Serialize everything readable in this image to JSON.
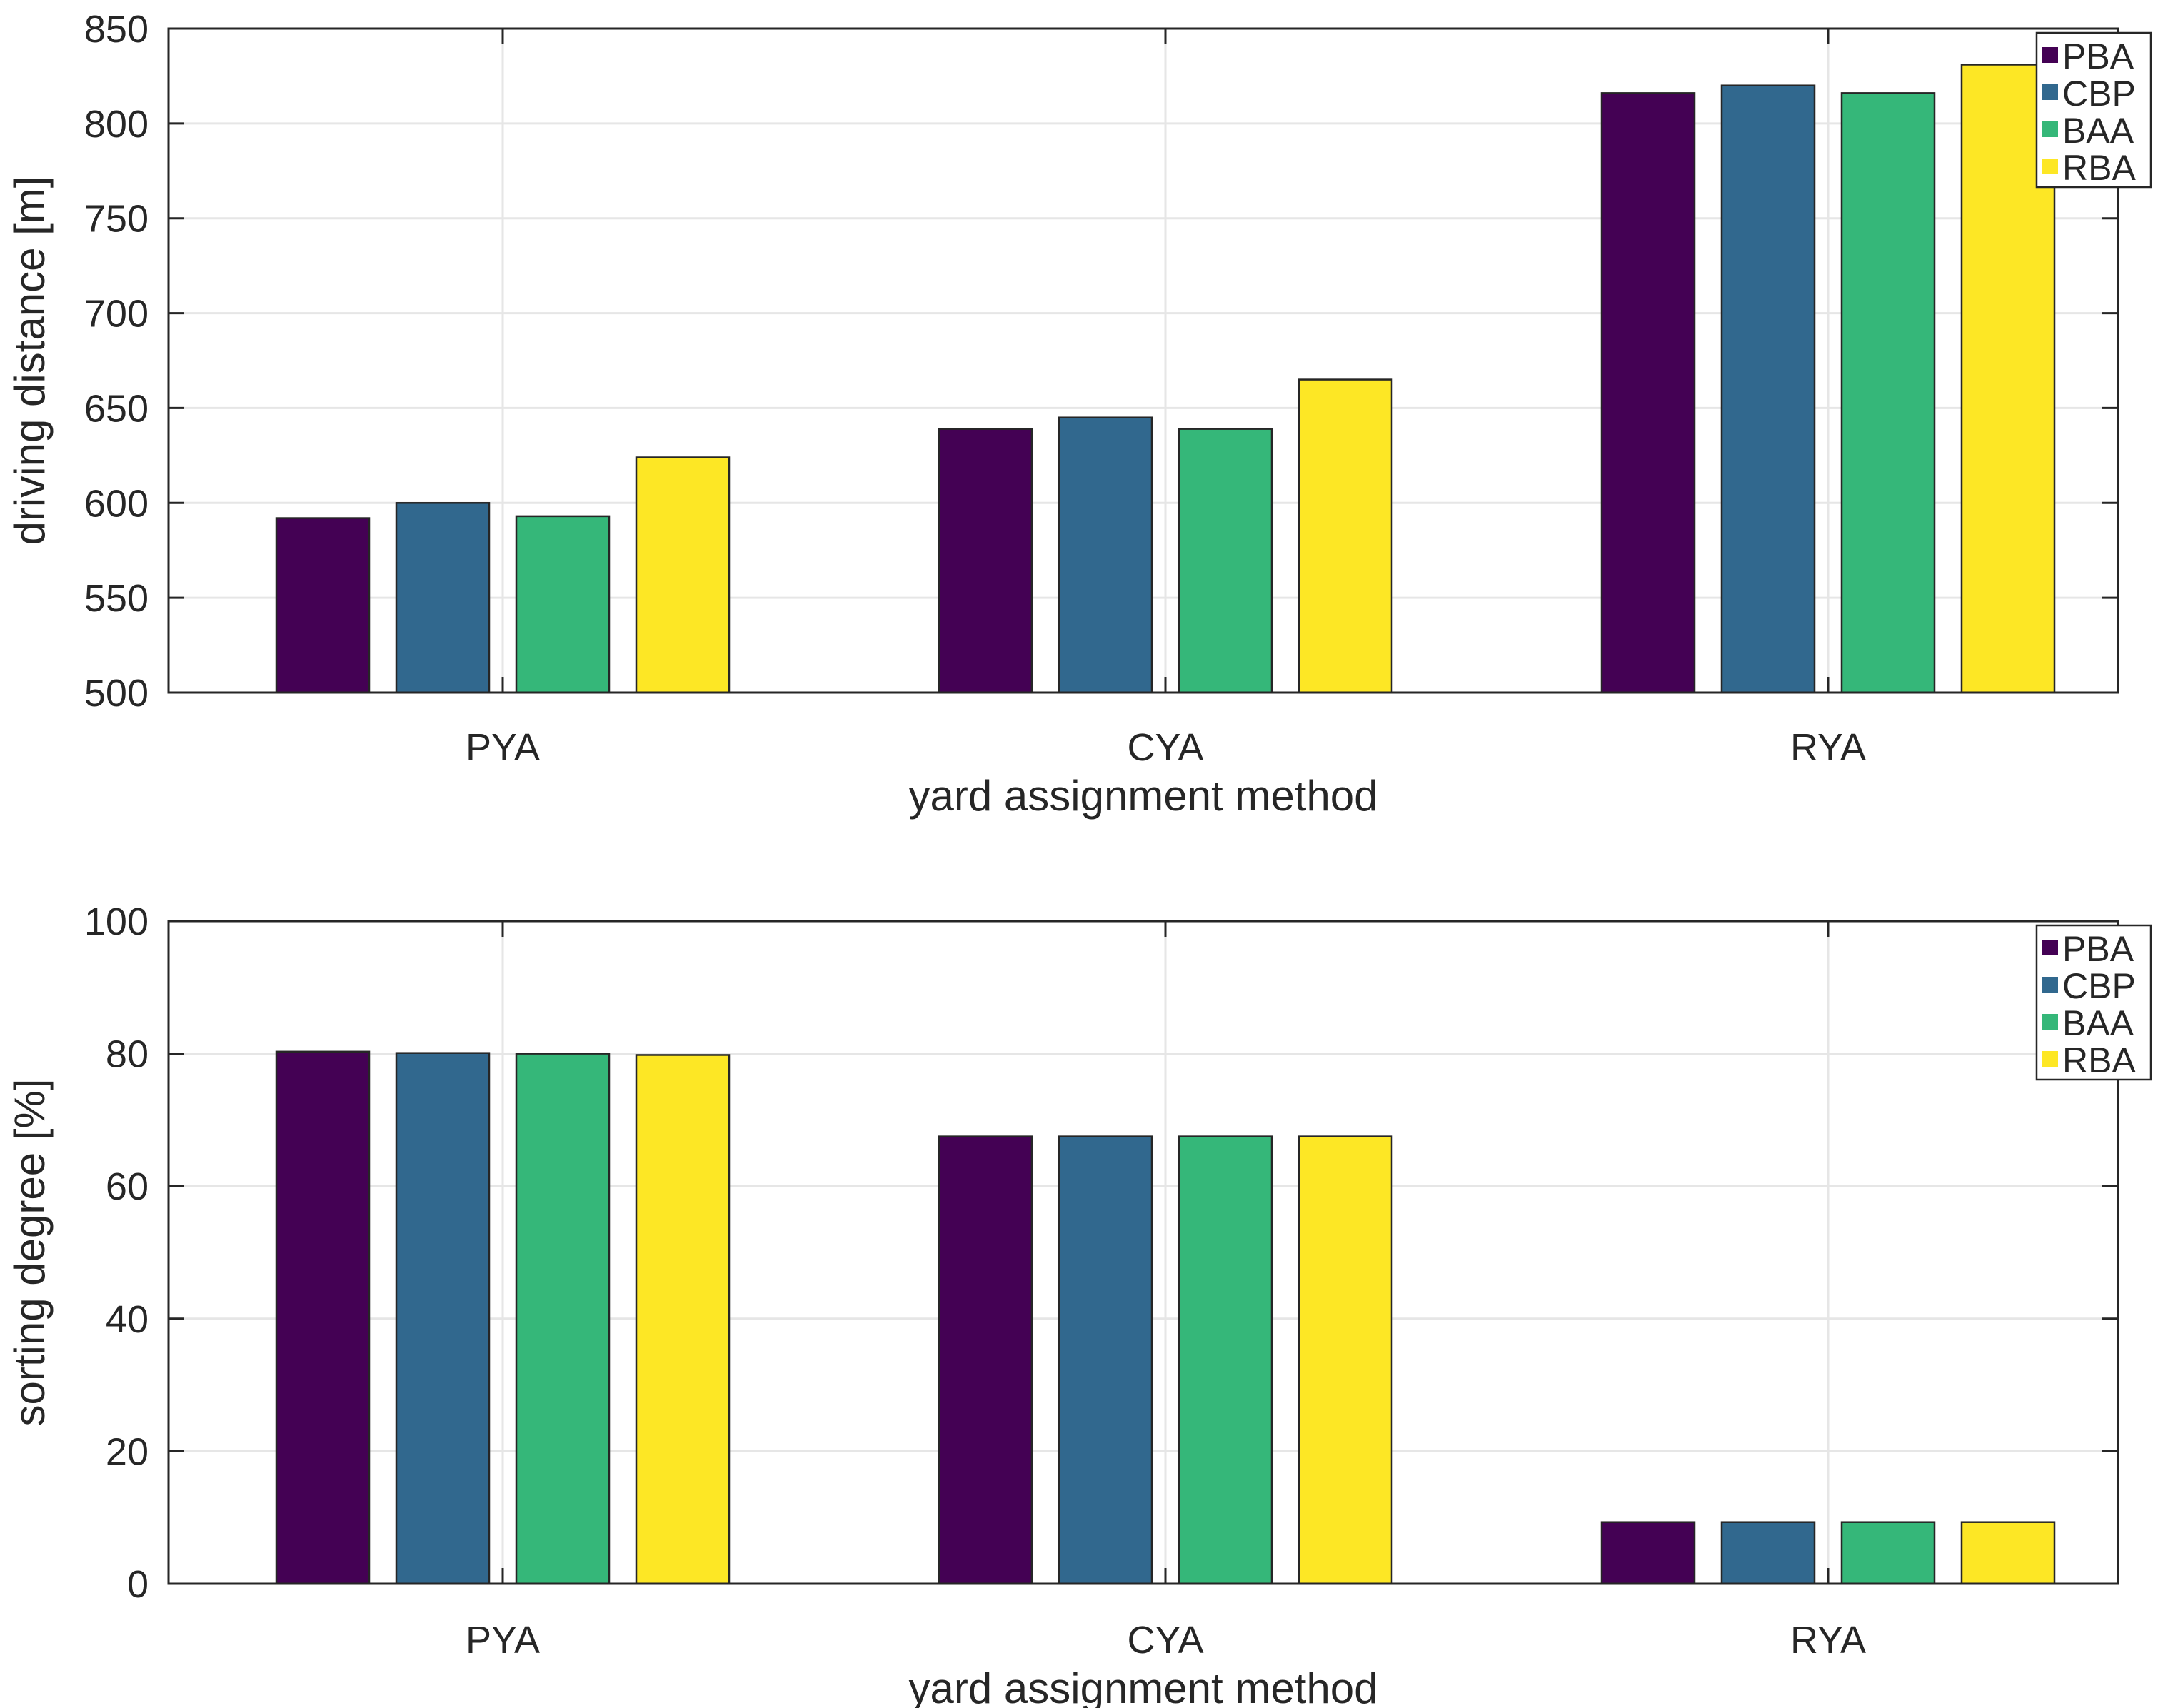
{
  "chart_data": [
    {
      "type": "bar",
      "categories": [
        "PYA",
        "CYA",
        "RYA"
      ],
      "series": [
        {
          "name": "PBA",
          "values": [
            592,
            639,
            816
          ]
        },
        {
          "name": "CBP",
          "values": [
            600,
            645,
            820
          ]
        },
        {
          "name": "BAA",
          "values": [
            593,
            639,
            816
          ]
        },
        {
          "name": "RBA",
          "values": [
            624,
            665,
            831
          ]
        }
      ],
      "xlabel": "yard assignment method",
      "ylabel": "driving distance [m]",
      "ylim": [
        500,
        850
      ],
      "yticks": [
        "500",
        "550",
        "600",
        "650",
        "700",
        "750",
        "800",
        "850"
      ],
      "grid": true,
      "legend": "top-right"
    },
    {
      "type": "bar",
      "categories": [
        "PYA",
        "CYA",
        "RYA"
      ],
      "series": [
        {
          "name": "PBA",
          "values": [
            80.3,
            67.5,
            9.3
          ]
        },
        {
          "name": "CBP",
          "values": [
            80.1,
            67.5,
            9.3
          ]
        },
        {
          "name": "BAA",
          "values": [
            80.0,
            67.5,
            9.3
          ]
        },
        {
          "name": "RBA",
          "values": [
            79.8,
            67.5,
            9.3
          ]
        }
      ],
      "xlabel": "yard assignment method",
      "ylabel": "sorting degree [%]",
      "ylim": [
        0,
        100
      ],
      "yticks": [
        "0",
        "20",
        "40",
        "60",
        "80",
        "100"
      ],
      "grid": true,
      "legend": "top-right"
    }
  ],
  "colors": {
    "PBA": "#440154",
    "CBP": "#31688e",
    "BAA": "#35b779",
    "RBA": "#fde725",
    "axis": "#262626",
    "grid": "#e6e6e6"
  }
}
